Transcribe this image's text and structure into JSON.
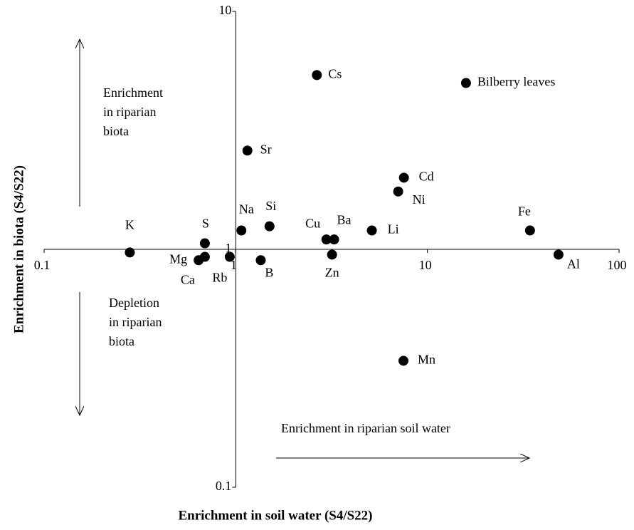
{
  "chart_data": {
    "type": "scatter",
    "log_x": true,
    "log_y": true,
    "color": "#000000",
    "x_label": "Enrichment in soil water (S4/S22)",
    "y_label": "Enrichment in biota (S4/S22)",
    "xlim": [
      0.1,
      100
    ],
    "xticks": [
      0.1,
      1,
      10,
      100
    ],
    "ylim": [
      0.1,
      10
    ],
    "yticks": [
      0.1,
      1,
      10
    ],
    "points": [
      {
        "label": "K",
        "x": 0.28,
        "y": 0.97
      },
      {
        "label": "S",
        "x": 0.69,
        "y": 1.06
      },
      {
        "label": "Mg",
        "x": 0.64,
        "y": 0.9
      },
      {
        "label": "Ca",
        "x": 0.69,
        "y": 0.93
      },
      {
        "label": "Rb",
        "x": 0.93,
        "y": 0.93
      },
      {
        "label": "Na",
        "x": 1.07,
        "y": 1.2
      },
      {
        "label": "B",
        "x": 1.35,
        "y": 0.9
      },
      {
        "label": "Si",
        "x": 1.5,
        "y": 1.25
      },
      {
        "label": "Cs",
        "x": 2.65,
        "y": 5.4
      },
      {
        "label": "Sr",
        "x": 1.15,
        "y": 2.6
      },
      {
        "label": "Cu",
        "x": 2.97,
        "y": 1.1
      },
      {
        "label": "Ba",
        "x": 3.26,
        "y": 1.1
      },
      {
        "label": "Zn",
        "x": 3.18,
        "y": 0.95
      },
      {
        "label": "Li",
        "x": 5.13,
        "y": 1.2
      },
      {
        "label": "Ni",
        "x": 7.04,
        "y": 1.75
      },
      {
        "label": "Cd",
        "x": 7.54,
        "y": 2.0
      },
      {
        "label": "Mn",
        "x": 7.5,
        "y": 0.34
      },
      {
        "label": "Fe",
        "x": 34.3,
        "y": 1.2
      },
      {
        "label": "Al",
        "x": 48.3,
        "y": 0.95
      },
      {
        "label": "Bilberry leaves",
        "x": 15.9,
        "y": 5.0
      }
    ],
    "annotations": [
      {
        "lines": [
          "Enrichment",
          "in riparian",
          "biota"
        ]
      },
      {
        "lines": [
          "Depletion",
          "in riparian",
          "biota"
        ]
      },
      {
        "lines": [
          "Enrichment in riparian soil water"
        ]
      }
    ]
  }
}
